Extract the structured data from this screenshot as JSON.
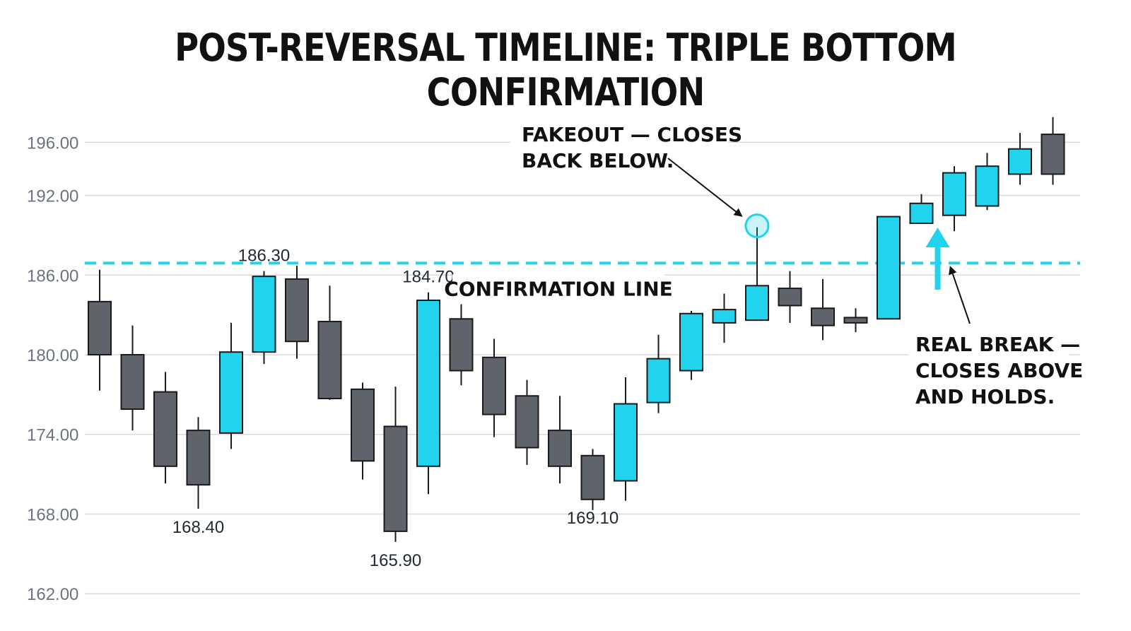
{
  "title": "POST-REVERSAL TIMELINE: TRIPLE BOTTOM CONFIRMATION",
  "colors": {
    "bullish": "#22d3ee",
    "bearish": "#5f636c",
    "outline": "#1a1a1a",
    "confirmation_line": "#22d3ee",
    "grid": "#d9d9d9"
  },
  "chart_data": {
    "type": "candlestick",
    "title": "POST-REVERSAL TIMELINE: TRIPLE BOTTOM CONFIRMATION",
    "xlabel": "",
    "ylabel": "",
    "ylim": [
      161,
      199
    ],
    "yticks": [
      "162.00",
      "168.00",
      "174.00",
      "180.00",
      "186.00",
      "192.00",
      "196.00"
    ],
    "grid": true,
    "confirmation_level": 186.9,
    "candles": [
      {
        "open": 184.0,
        "high": 186.4,
        "low": 177.3,
        "close": 180.0
      },
      {
        "open": 180.0,
        "high": 182.2,
        "low": 174.3,
        "close": 175.9
      },
      {
        "open": 177.2,
        "high": 178.7,
        "low": 170.3,
        "close": 171.6
      },
      {
        "open": 174.3,
        "high": 175.3,
        "low": 168.4,
        "close": 170.2
      },
      {
        "open": 174.1,
        "high": 182.4,
        "low": 172.9,
        "close": 180.2
      },
      {
        "open": 180.2,
        "high": 186.3,
        "low": 179.3,
        "close": 185.9
      },
      {
        "open": 185.7,
        "high": 186.7,
        "low": 179.7,
        "close": 181.0
      },
      {
        "open": 182.5,
        "high": 185.2,
        "low": 176.6,
        "close": 176.7
      },
      {
        "open": 177.4,
        "high": 177.9,
        "low": 170.6,
        "close": 172.0
      },
      {
        "open": 174.6,
        "high": 177.6,
        "low": 165.9,
        "close": 166.7
      },
      {
        "open": 171.6,
        "high": 184.7,
        "low": 169.5,
        "close": 184.1
      },
      {
        "open": 182.7,
        "high": 183.8,
        "low": 177.7,
        "close": 178.8
      },
      {
        "open": 179.8,
        "high": 181.2,
        "low": 173.8,
        "close": 175.5
      },
      {
        "open": 176.9,
        "high": 178.1,
        "low": 171.7,
        "close": 173.0
      },
      {
        "open": 174.3,
        "high": 176.9,
        "low": 170.3,
        "close": 171.6
      },
      {
        "open": 172.4,
        "high": 172.9,
        "low": 168.3,
        "close": 169.1
      },
      {
        "open": 170.5,
        "high": 178.3,
        "low": 169.0,
        "close": 176.3
      },
      {
        "open": 176.4,
        "high": 181.5,
        "low": 175.6,
        "close": 179.7
      },
      {
        "open": 178.8,
        "high": 183.3,
        "low": 178.1,
        "close": 183.1
      },
      {
        "open": 182.4,
        "high": 184.6,
        "low": 180.9,
        "close": 183.4
      },
      {
        "open": 182.6,
        "high": 189.6,
        "low": 182.6,
        "close": 185.2
      },
      {
        "open": 185.0,
        "high": 186.3,
        "low": 182.4,
        "close": 183.7
      },
      {
        "open": 183.5,
        "high": 185.7,
        "low": 181.1,
        "close": 182.2
      },
      {
        "open": 182.8,
        "high": 183.5,
        "low": 181.7,
        "close": 182.4
      },
      {
        "open": 182.7,
        "high": 190.4,
        "low": 182.7,
        "close": 190.4
      },
      {
        "open": 189.9,
        "high": 192.1,
        "low": 189.9,
        "close": 191.4
      },
      {
        "open": 190.5,
        "high": 194.2,
        "low": 189.3,
        "close": 193.7
      },
      {
        "open": 191.2,
        "high": 195.2,
        "low": 190.9,
        "close": 194.2
      },
      {
        "open": 193.6,
        "high": 196.7,
        "low": 192.8,
        "close": 195.5
      },
      {
        "open": 196.6,
        "high": 197.9,
        "low": 192.8,
        "close": 193.6
      }
    ],
    "level_labels": [
      {
        "text": "186.30",
        "candle": 5,
        "price": 186.3,
        "side": "above"
      },
      {
        "text": "184.70",
        "candle": 10,
        "price": 184.7,
        "side": "above"
      },
      {
        "text": "168.40",
        "candle": 3,
        "price": 168.4,
        "side": "below"
      },
      {
        "text": "165.90",
        "candle": 9,
        "price": 165.9,
        "side": "below"
      },
      {
        "text": "169.10",
        "candle": 15,
        "price": 169.1,
        "side": "below"
      }
    ],
    "annotations": {
      "confirmation_line_label": "CONFIRMATION LINE",
      "fakeout": {
        "lines": [
          "FAKEOUT — CLOSES",
          "BACK BELOW."
        ],
        "candle": 20
      },
      "real_break": {
        "lines": [
          "REAL BREAK —",
          "CLOSES ABOVE",
          "AND HOLDS."
        ],
        "candle": 25
      }
    }
  }
}
